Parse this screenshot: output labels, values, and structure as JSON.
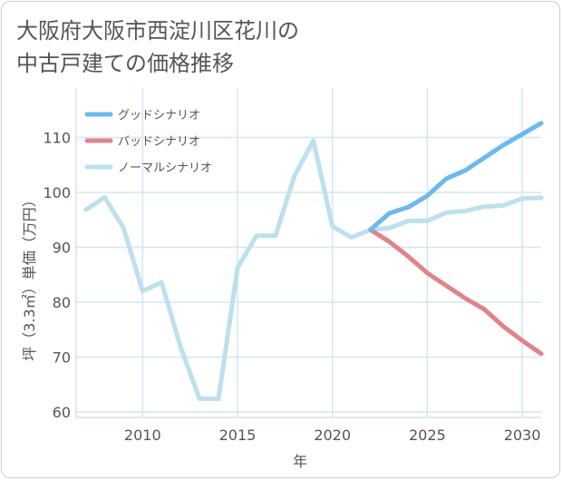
{
  "title": "大阪府大阪市西淀川区花川の\n中古戸建ての価格推移",
  "chart_data": {
    "type": "line",
    "xlabel": "年",
    "ylabel": "坪（3.3㎡）単価（万円）",
    "xlim": [
      2006.5,
      2031
    ],
    "ylim": [
      59,
      119
    ],
    "x_ticks": [
      2010,
      2015,
      2020,
      2025,
      2030
    ],
    "y_ticks": [
      60,
      70,
      80,
      90,
      100,
      110
    ],
    "x_tick_labels": [
      "2010",
      "2015",
      "2020",
      "2025",
      "2030"
    ],
    "y_tick_labels": [
      "60",
      "70",
      "80",
      "90",
      "100",
      "110"
    ],
    "grid": true,
    "legend_position": "top-left",
    "series": [
      {
        "name": "グッドシナリオ",
        "color": "#6cb9ee",
        "x": [
          2022,
          2023,
          2024,
          2025,
          2026,
          2027,
          2028,
          2029,
          2030,
          2031
        ],
        "y": [
          93.2,
          96.2,
          97.3,
          99.4,
          102.5,
          104.0,
          106.3,
          108.6,
          110.6,
          112.6
        ]
      },
      {
        "name": "バッドシナリオ",
        "color": "#e0848c",
        "x": [
          2022,
          2023,
          2024,
          2025,
          2026,
          2027,
          2028,
          2029,
          2030,
          2031
        ],
        "y": [
          93.2,
          91.0,
          88.3,
          85.3,
          83.0,
          80.7,
          78.7,
          75.6,
          73.0,
          70.6
        ]
      },
      {
        "name": "ノーマルシナリオ",
        "color": "#bde0ee",
        "x": [
          2007,
          2008,
          2009,
          2010,
          2011,
          2012,
          2013,
          2014,
          2015,
          2016,
          2017,
          2018,
          2019,
          2020,
          2021,
          2022,
          2023,
          2024,
          2025,
          2026,
          2027,
          2028,
          2029,
          2030,
          2031
        ],
        "y": [
          96.8,
          99.1,
          93.5,
          82.0,
          83.6,
          71.8,
          62.4,
          62.4,
          86.2,
          92.1,
          92.1,
          103.0,
          109.4,
          93.8,
          91.8,
          93.2,
          93.5,
          94.8,
          94.8,
          96.3,
          96.6,
          97.4,
          97.6,
          98.9,
          99.0
        ]
      }
    ]
  }
}
